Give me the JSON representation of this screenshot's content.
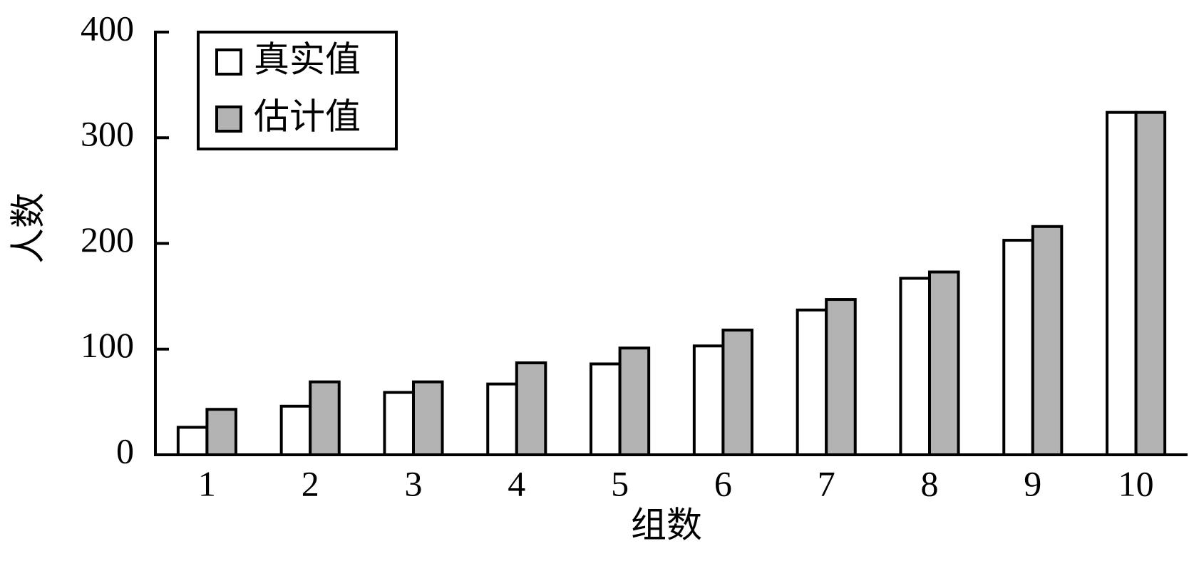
{
  "chart_data": {
    "type": "bar",
    "x_label": "组数",
    "y_label": "人数",
    "categories": [
      "1",
      "2",
      "3",
      "4",
      "5",
      "6",
      "7",
      "8",
      "9",
      "10"
    ],
    "series": [
      {
        "name": "真实值",
        "color": "#ffffff",
        "values": [
          26,
          46,
          59,
          67,
          86,
          103,
          137,
          167,
          203,
          324
        ]
      },
      {
        "name": "估计值",
        "color": "#b3b3b3",
        "values": [
          43,
          69,
          69,
          87,
          101,
          118,
          147,
          173,
          216,
          324
        ]
      }
    ],
    "ylim": [
      0,
      400
    ],
    "yticks": [
      0,
      100,
      200,
      300,
      400
    ],
    "legend": "upper left"
  }
}
